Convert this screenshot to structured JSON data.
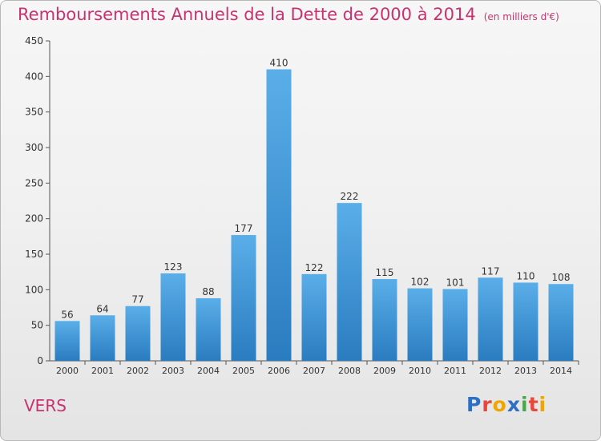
{
  "chart_data": {
    "type": "bar",
    "title": "Remboursements Annuels de la Dette de 2000 à 2014",
    "subtitle": "(en milliers d'€)",
    "categories": [
      "2000",
      "2001",
      "2002",
      "2003",
      "2004",
      "2005",
      "2006",
      "2007",
      "2008",
      "2009",
      "2010",
      "2011",
      "2012",
      "2013",
      "2014"
    ],
    "values": [
      56,
      64,
      77,
      123,
      88,
      177,
      410,
      122,
      222,
      115,
      102,
      101,
      117,
      110,
      108
    ],
    "ylim": [
      0,
      450
    ],
    "yticks": [
      0,
      50,
      100,
      150,
      200,
      250,
      300,
      350,
      400,
      450
    ],
    "grid": false,
    "colors": {
      "bar_top": "#5aaee8",
      "bar_bottom": "#2a7cc0",
      "title": "#c8336f",
      "axis": "#555555"
    }
  },
  "location": "VERS",
  "brand": {
    "p": "P",
    "r": "r",
    "o": "o",
    "x": "x",
    "i1": "i",
    "t": "t",
    "i2": "i"
  }
}
